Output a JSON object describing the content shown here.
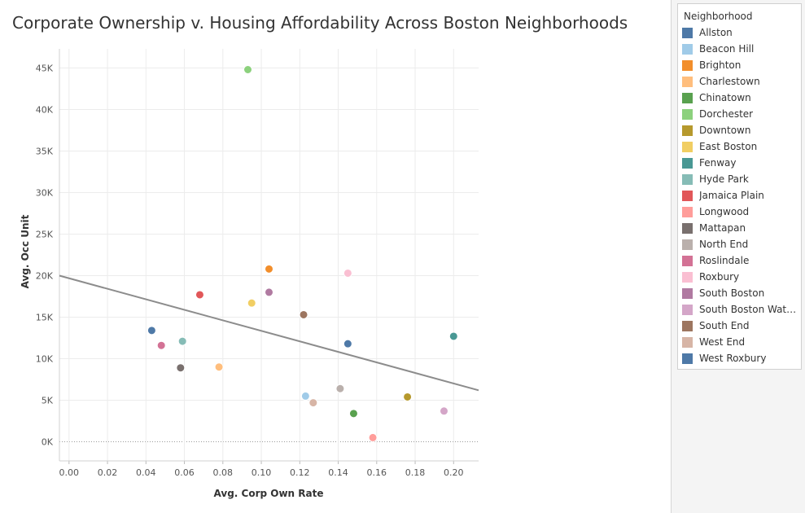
{
  "chart_data": {
    "type": "scatter",
    "title": "Corporate Ownership v. Housing Affordability Across Boston Neighborhoods",
    "xlabel": "Avg. Corp Own Rate",
    "ylabel": "Avg. Occ Unit",
    "xlim": [
      -0.005,
      0.213
    ],
    "ylim": [
      -2300,
      47300
    ],
    "x_ticks": [
      0.0,
      0.02,
      0.04,
      0.06,
      0.08,
      0.1,
      0.12,
      0.14,
      0.16,
      0.18,
      0.2
    ],
    "x_tick_labels": [
      "0.00",
      "0.02",
      "0.04",
      "0.06",
      "0.08",
      "0.10",
      "0.12",
      "0.14",
      "0.16",
      "0.18",
      "0.20"
    ],
    "y_ticks": [
      0,
      5000,
      10000,
      15000,
      20000,
      25000,
      30000,
      35000,
      40000,
      45000
    ],
    "y_tick_labels": [
      "0K",
      "5K",
      "10K",
      "15K",
      "20K",
      "25K",
      "30K",
      "35K",
      "40K",
      "45K"
    ],
    "grid": true,
    "legend_position": "right",
    "legend_title": "Neighborhood",
    "trend_line": {
      "x": [
        -0.005,
        0.213
      ],
      "y": [
        20000,
        6200
      ],
      "color": "#8c8c8c"
    },
    "series": [
      {
        "name": "Allston",
        "color": "#4e79a7",
        "x": 0.043,
        "y": 13400
      },
      {
        "name": "Beacon Hill",
        "color": "#a0cbe8",
        "x": 0.123,
        "y": 5500
      },
      {
        "name": "Brighton",
        "color": "#f28e2b",
        "x": 0.104,
        "y": 20800
      },
      {
        "name": "Charlestown",
        "color": "#ffbe7d",
        "x": 0.078,
        "y": 9000
      },
      {
        "name": "Chinatown",
        "color": "#59a14f",
        "x": 0.148,
        "y": 3400
      },
      {
        "name": "Dorchester",
        "color": "#8cd17d",
        "x": 0.093,
        "y": 44800
      },
      {
        "name": "Downtown",
        "color": "#b6992d",
        "x": 0.176,
        "y": 5400
      },
      {
        "name": "East Boston",
        "color": "#f1ce63",
        "x": 0.095,
        "y": 16700
      },
      {
        "name": "Fenway",
        "color": "#499894",
        "x": 0.2,
        "y": 12700
      },
      {
        "name": "Hyde Park",
        "color": "#86bcb6",
        "x": 0.059,
        "y": 12100
      },
      {
        "name": "Jamaica Plain",
        "color": "#e15759",
        "x": 0.068,
        "y": 17700
      },
      {
        "name": "Longwood",
        "color": "#ff9d9a",
        "x": 0.158,
        "y": 500
      },
      {
        "name": "Mattapan",
        "color": "#79706e",
        "x": 0.058,
        "y": 8900
      },
      {
        "name": "North End",
        "color": "#bab0ac",
        "x": 0.141,
        "y": 6400
      },
      {
        "name": "Roslindale",
        "color": "#d37295",
        "x": 0.048,
        "y": 11600
      },
      {
        "name": "Roxbury",
        "color": "#fabfd2",
        "x": 0.145,
        "y": 20300
      },
      {
        "name": "South Boston",
        "color": "#b07aa1",
        "x": 0.104,
        "y": 18000
      },
      {
        "name": "South Boston Water..",
        "color": "#d4a6c8",
        "x": 0.195,
        "y": 3700
      },
      {
        "name": "South End",
        "color": "#9d7660",
        "x": 0.122,
        "y": 15300
      },
      {
        "name": "West End",
        "color": "#d7b5a6",
        "x": 0.127,
        "y": 4700
      },
      {
        "name": "West Roxbury",
        "color": "#4e79a7",
        "x": 0.145,
        "y": 11800
      }
    ]
  }
}
